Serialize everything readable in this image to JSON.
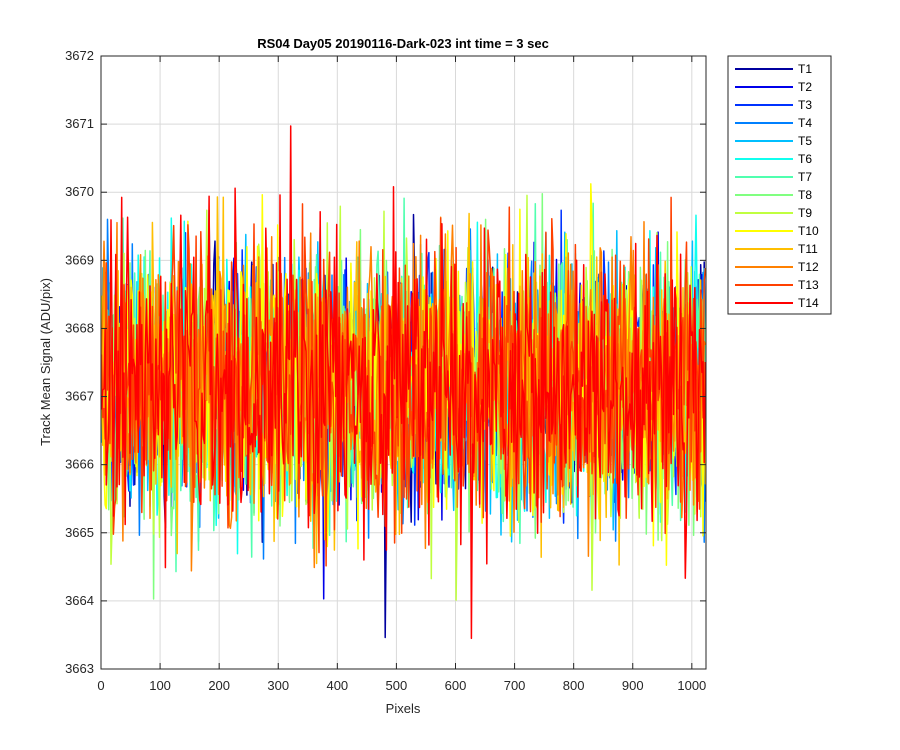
{
  "chart_data": {
    "type": "line",
    "title": "RS04 Day05 20190116-Dark-023 int time = 3 sec",
    "xlabel": "Pixels",
    "ylabel": "Track Mean Signal (ADU/pix)",
    "xlim": [
      0,
      1024
    ],
    "ylim": [
      3663,
      3672
    ],
    "xticks": [
      0,
      100,
      200,
      300,
      400,
      500,
      600,
      700,
      800,
      900,
      1000
    ],
    "yticks": [
      3663,
      3664,
      3665,
      3666,
      3667,
      3668,
      3669,
      3670,
      3671,
      3672
    ],
    "grid": true,
    "legend_position": "outside-top-right",
    "x_range": [
      1,
      1024
    ],
    "mean": 3667.2,
    "typical_range": [
      3665.5,
      3669.2
    ],
    "extremes": {
      "min": 3663.45,
      "max": 3671.2
    },
    "series": [
      {
        "name": "T1",
        "color": "#00009F"
      },
      {
        "name": "T2",
        "color": "#0000EA"
      },
      {
        "name": "T3",
        "color": "#0033FF"
      },
      {
        "name": "T4",
        "color": "#0080FF"
      },
      {
        "name": "T5",
        "color": "#00BFFF"
      },
      {
        "name": "T6",
        "color": "#10FFEF"
      },
      {
        "name": "T7",
        "color": "#50FFAF"
      },
      {
        "name": "T8",
        "color": "#80FF80"
      },
      {
        "name": "T9",
        "color": "#C0FF40"
      },
      {
        "name": "T10",
        "color": "#FFFF00"
      },
      {
        "name": "T11",
        "color": "#FFBF00"
      },
      {
        "name": "T12",
        "color": "#FF8000"
      },
      {
        "name": "T13",
        "color": "#FF4000"
      },
      {
        "name": "T14",
        "color": "#FF0000"
      }
    ]
  }
}
